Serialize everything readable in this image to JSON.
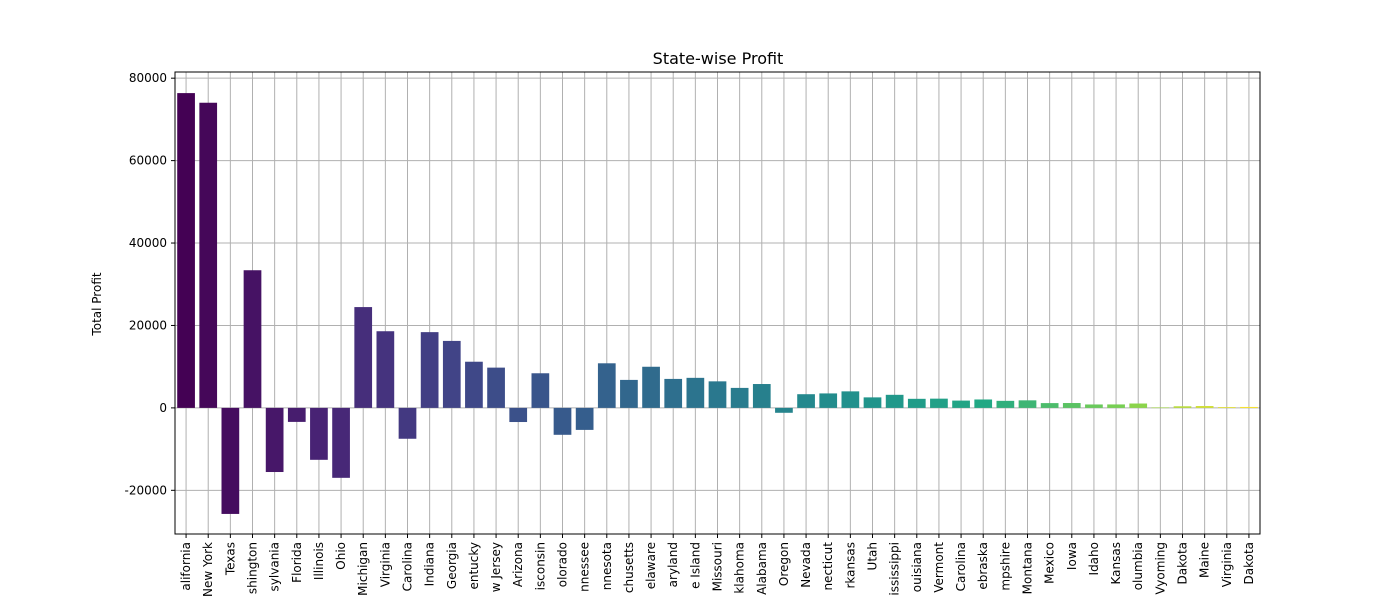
{
  "chart_data": {
    "type": "bar",
    "title": "State-wise Profit",
    "xlabel": "",
    "ylabel": "Total Profit",
    "ylim": [
      -30600,
      81500
    ],
    "yticks": [
      -20000,
      0,
      20000,
      40000,
      60000,
      80000
    ],
    "grid": true,
    "palette": "viridis",
    "categories": [
      "California",
      "New York",
      "Texas",
      "Washington",
      "Pennsylvania",
      "Florida",
      "Illinois",
      "Ohio",
      "Michigan",
      "Virginia",
      "North Carolina",
      "Indiana",
      "Georgia",
      "Kentucky",
      "New Jersey",
      "Arizona",
      "Wisconsin",
      "Colorado",
      "Tennessee",
      "Minnesota",
      "Massachusetts",
      "Delaware",
      "Maryland",
      "Rhode Island",
      "Missouri",
      "Oklahoma",
      "Alabama",
      "Oregon",
      "Nevada",
      "Connecticut",
      "Arkansas",
      "Utah",
      "Mississippi",
      "Louisiana",
      "Vermont",
      "South Carolina",
      "Nebraska",
      "New Hampshire",
      "Montana",
      "New Mexico",
      "Iowa",
      "Idaho",
      "Kansas",
      "District of Columbia",
      "Wyoming",
      "South Dakota",
      "Maine",
      "West Virginia",
      "North Dakota"
    ],
    "tick_labels": [
      "alifornia",
      "New York",
      "Texas",
      "shington",
      "sylvania",
      "Florida",
      "Illinois",
      "Ohio",
      "Michigan",
      "Virginia",
      "Carolina",
      "Indiana",
      "Georgia",
      "entucky",
      "w Jersey",
      "Arizona",
      "isconsin",
      "olorado",
      "nnessee",
      "nnesota",
      "chusetts",
      "elaware",
      "aryland",
      "e Island",
      "Missouri",
      "klahoma",
      "Alabama",
      "Oregon",
      "Nevada",
      "necticut",
      "rkansas",
      "Utah",
      "ississippi",
      "ouisiana",
      "Vermont",
      "Carolina",
      "ebraska",
      "mpshire",
      "Montana",
      "Mexico",
      "Iowa",
      "Idaho",
      "Kansas",
      "olumbia",
      "Vyoming",
      "Dakota",
      "Maine",
      "Virginia",
      "Dakota"
    ],
    "values": [
      76380,
      74040,
      -25730,
      33400,
      -15560,
      -3400,
      -12600,
      -16970,
      24460,
      18600,
      -7490,
      18380,
      16250,
      11200,
      9770,
      -3430,
      8400,
      -6530,
      -5340,
      10820,
      6790,
      9980,
      7030,
      7290,
      6440,
      4850,
      5790,
      -1190,
      3320,
      3510,
      4010,
      2550,
      3170,
      2200,
      2240,
      1770,
      2040,
      1710,
      1830,
      1160,
      1180,
      830,
      840,
      1060,
      100,
      390,
      450,
      190,
      230
    ]
  }
}
